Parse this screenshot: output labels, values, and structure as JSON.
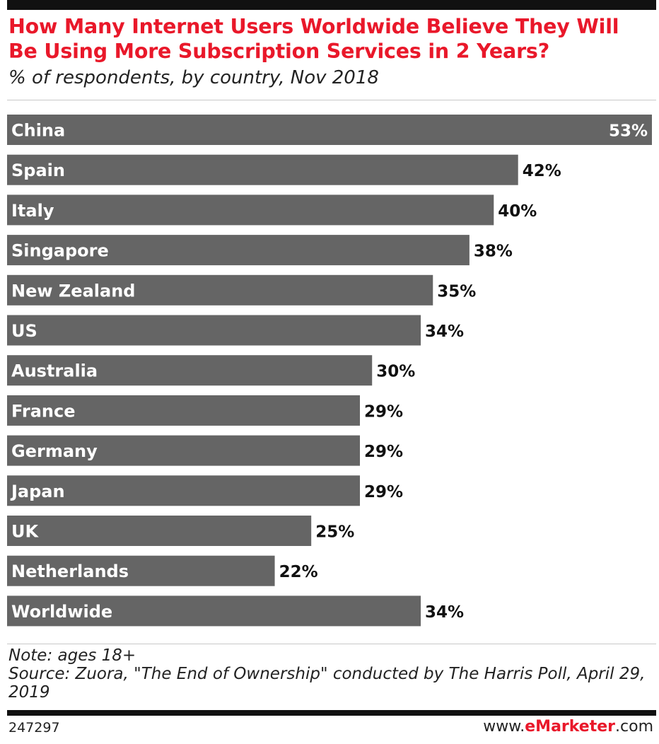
{
  "header": {
    "title": "How Many Internet Users Worldwide Believe They Will Be Using More Subscription Services in 2 Years?",
    "subtitle": "% of respondents, by country, Nov 2018"
  },
  "chart_data": {
    "type": "bar",
    "orientation": "horizontal",
    "categories": [
      "China",
      "Spain",
      "Italy",
      "Singapore",
      "New Zealand",
      "US",
      "Australia",
      "France",
      "Germany",
      "Japan",
      "UK",
      "Netherlands",
      "Worldwide"
    ],
    "values": [
      53,
      42,
      40,
      38,
      35,
      34,
      30,
      29,
      29,
      29,
      25,
      22,
      34
    ],
    "value_labels": [
      "53%",
      "42%",
      "40%",
      "38%",
      "35%",
      "34%",
      "30%",
      "29%",
      "29%",
      "29%",
      "25%",
      "22%",
      "34%"
    ],
    "xlim": [
      0,
      53
    ],
    "grid": false,
    "legend": "none",
    "bar_color": "#656565"
  },
  "footer": {
    "note": "Note: ages 18+",
    "source": "Source: Zuora, \"The End of Ownership\" conducted by The Harris Poll, April 29, 2019",
    "chart_id": "247297",
    "brand_prefix": "www.",
    "brand_name": "eMarketer",
    "brand_suffix": ".com"
  },
  "colors": {
    "title": "#e9182a",
    "bar": "#656565",
    "bar_label": "#ffffff",
    "value_label": "#111111"
  }
}
